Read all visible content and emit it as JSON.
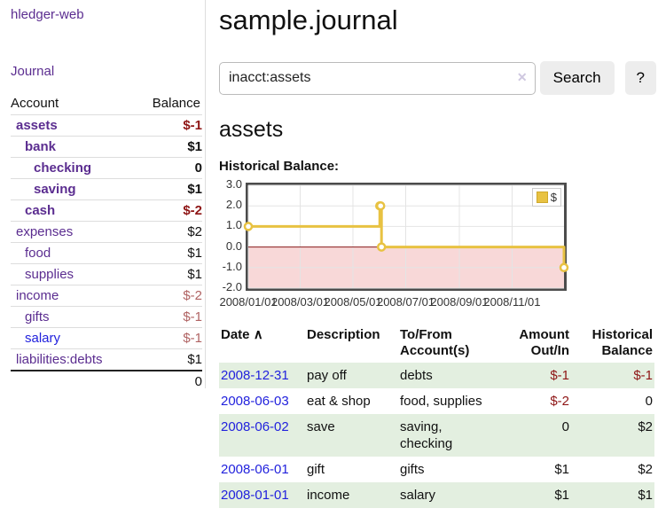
{
  "colors": {
    "link_purple": "#5b2d90",
    "link_blue": "#2222dd",
    "negative_strong": "#8e1515",
    "negative_muted": "#b06363",
    "row_green": "#e3efe0",
    "chart_line_gold": "#e8c242",
    "chart_negative_fill": "#f8d8d8",
    "chart_zero_line": "#8b1a1a",
    "chart_grid": "#e4e4e4",
    "chart_border": "#4c4c4c"
  },
  "sidebar": {
    "brand": "hledger-web",
    "journal_link": "Journal",
    "table": {
      "account_header": "Account",
      "balance_header": "Balance",
      "rows": [
        {
          "account": "assets",
          "balance": "$-1",
          "indent": 1,
          "bold": true
        },
        {
          "account": "bank",
          "balance": "$1",
          "indent": 2,
          "bold": true
        },
        {
          "account": "checking",
          "balance": "0",
          "indent": 3,
          "bold": true
        },
        {
          "account": "saving",
          "balance": "$1",
          "indent": 3,
          "bold": true
        },
        {
          "account": "cash",
          "balance": "$-2",
          "indent": 2,
          "bold": true
        },
        {
          "account": "expenses",
          "balance": "$2",
          "indent": 1,
          "bold": false
        },
        {
          "account": "food",
          "balance": "$1",
          "indent": 2,
          "bold": false
        },
        {
          "account": "supplies",
          "balance": "$1",
          "indent": 2,
          "bold": false
        },
        {
          "account": "income",
          "balance": "$-2",
          "indent": 1,
          "bold": false
        },
        {
          "account": "gifts",
          "balance": "$-1",
          "indent": 2,
          "bold": false
        },
        {
          "account": "salary",
          "balance": "$-1",
          "indent": 2,
          "bold": false,
          "link": "blue"
        },
        {
          "account": "liabilities:debts",
          "balance": "$1",
          "indent": 1,
          "bold": false
        }
      ],
      "total": "0"
    }
  },
  "main": {
    "title": "sample.journal",
    "search": {
      "value": "inacct:assets",
      "clear_icon": "✕",
      "button_label": "Search",
      "help_label": "?"
    },
    "section_title": "assets",
    "chart_label": "Historical Balance:"
  },
  "chart_data": {
    "type": "line",
    "title": "Historical Balance:",
    "step": true,
    "x_range": [
      "2008-01-01",
      "2008-12-31"
    ],
    "ylim": [
      -2,
      3
    ],
    "series": [
      {
        "name": "$",
        "points": [
          [
            "2008-01-01",
            1
          ],
          [
            "2008-06-01",
            2
          ],
          [
            "2008-06-02",
            2
          ],
          [
            "2008-06-03",
            0
          ],
          [
            "2008-12-31",
            -1
          ]
        ]
      }
    ],
    "y_ticks": [
      {
        "value": 3,
        "label": "3.0"
      },
      {
        "value": 2,
        "label": "2.0"
      },
      {
        "value": 1,
        "label": "1.0"
      },
      {
        "value": 0,
        "label": "0.0"
      },
      {
        "value": -1,
        "label": "-1.0"
      },
      {
        "value": -2,
        "label": "-2.0"
      }
    ],
    "x_ticks": [
      {
        "date": "2008-01-01",
        "label": "2008/01/01"
      },
      {
        "date": "2008-03-01",
        "label": "2008/03/01"
      },
      {
        "date": "2008-05-01",
        "label": "2008/05/01"
      },
      {
        "date": "2008-07-01",
        "label": "2008/07/01"
      },
      {
        "date": "2008-09-01",
        "label": "2008/09/01"
      },
      {
        "date": "2008-11-01",
        "label": "2008/11/01"
      }
    ],
    "legend": {
      "label": "$",
      "position": "top-right"
    },
    "grid": true,
    "negative_region_shaded": true
  },
  "transactions": {
    "headers": {
      "date": "Date",
      "sort_icon": "∧",
      "description": "Description",
      "accounts": "To/From Account(s)",
      "amount": "Amount Out/In",
      "balance": "Historical Balance"
    },
    "rows": [
      {
        "date": "2008-12-31",
        "description": "pay off",
        "accounts": "debts",
        "amount": "$-1",
        "balance": "$-1"
      },
      {
        "date": "2008-06-03",
        "description": "eat & shop",
        "accounts": "food, supplies",
        "amount": "$-2",
        "balance": "0"
      },
      {
        "date": "2008-06-02",
        "description": "save",
        "accounts": "saving,\nchecking",
        "amount": "0",
        "balance": "$2"
      },
      {
        "date": "2008-06-01",
        "description": "gift",
        "accounts": "gifts",
        "amount": "$1",
        "balance": "$2"
      },
      {
        "date": "2008-01-01",
        "description": "income",
        "accounts": "salary",
        "amount": "$1",
        "balance": "$1"
      }
    ]
  }
}
